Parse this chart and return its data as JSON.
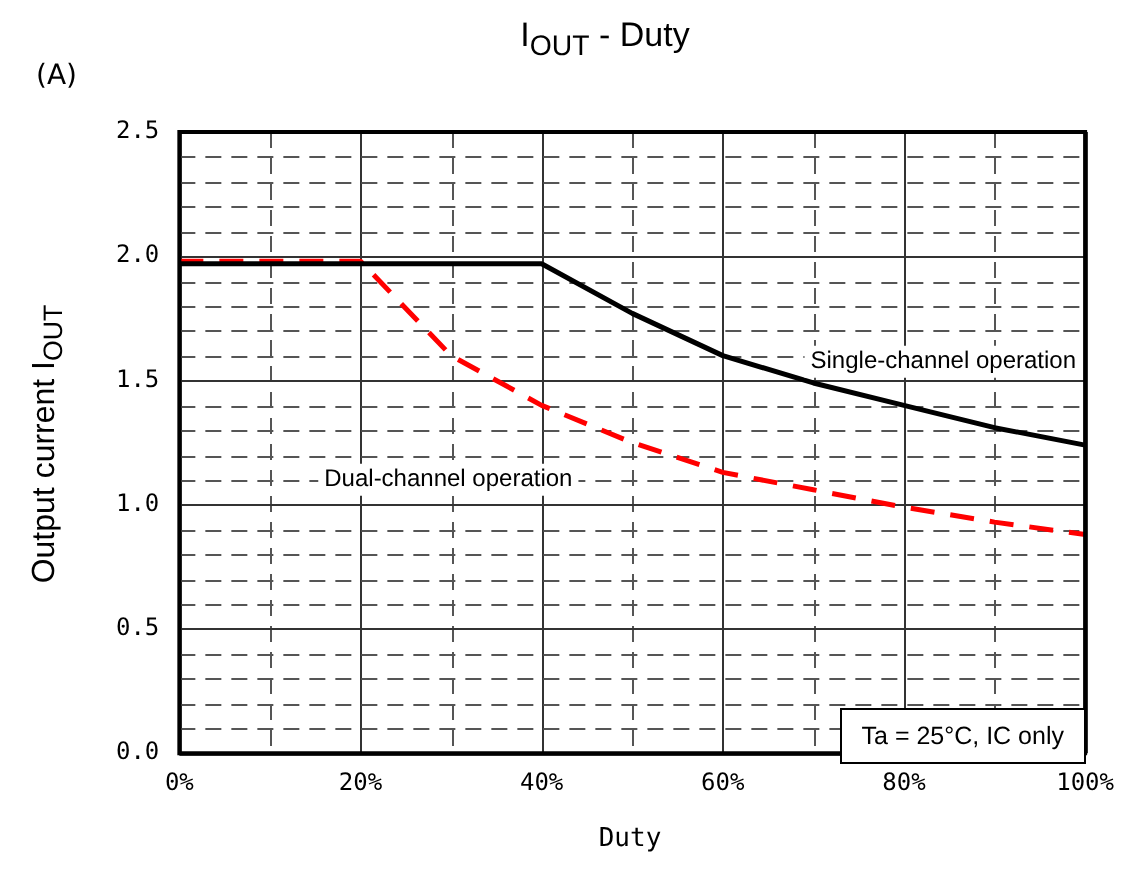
{
  "chart_data": {
    "type": "line",
    "title": "I$_{OUT}$ - Duty",
    "xlabel": "Duty",
    "ylabel": "Output current  I$_{OUT}$",
    "annotations": [
      "(A)",
      "Ta = 25°C, IC only"
    ],
    "x": [
      0,
      20,
      30,
      40,
      50,
      60,
      70,
      80,
      90,
      100
    ],
    "series": [
      {
        "name": "Single-channel operation",
        "color": "#000000",
        "line_style": "solid",
        "values": [
          1.97,
          1.97,
          1.97,
          1.97,
          1.77,
          1.6,
          1.49,
          1.4,
          1.31,
          1.24
        ]
      },
      {
        "name": "Dual-channel operation",
        "color": "#ff0000",
        "line_style": "dashed",
        "values": [
          1.98,
          1.98,
          1.6,
          1.4,
          1.25,
          1.13,
          1.06,
          0.99,
          0.93,
          0.88
        ]
      }
    ],
    "xlim": [
      0,
      100
    ],
    "xticks": [
      {
        "value": 0,
        "label": "0%"
      },
      {
        "value": 10,
        "label": null
      },
      {
        "value": 20,
        "label": "20%"
      },
      {
        "value": 30,
        "label": null
      },
      {
        "value": 40,
        "label": "40%"
      },
      {
        "value": 50,
        "label": null
      },
      {
        "value": 60,
        "label": "60%"
      },
      {
        "value": 70,
        "label": null
      },
      {
        "value": 80,
        "label": "80%"
      },
      {
        "value": 90,
        "label": null
      },
      {
        "value": 100,
        "label": "100%"
      }
    ],
    "ylim": [
      0,
      2.5
    ],
    "yticks": [
      {
        "value": 0,
        "label": "0.0"
      },
      {
        "value": 0.1,
        "label": null
      },
      {
        "value": 0.2,
        "label": null
      },
      {
        "value": 0.3,
        "label": null
      },
      {
        "value": 0.4,
        "label": null
      },
      0.5,
      {
        "value": 0.6,
        "label": null
      },
      {
        "value": 0.7,
        "label": null
      },
      {
        "value": 0.8,
        "label": null
      },
      {
        "value": 0.9,
        "label": null
      },
      {
        "value": 1,
        "label": "1.0"
      },
      {
        "value": 1.1,
        "label": null
      },
      {
        "value": 1.2,
        "label": null
      },
      {
        "value": 1.3,
        "label": null
      },
      {
        "value": 1.4,
        "label": null
      },
      1.5,
      {
        "value": 1.6,
        "label": null
      },
      {
        "value": 1.7,
        "label": null
      },
      {
        "value": 1.8,
        "label": null
      },
      {
        "value": 1.9,
        "label": null
      },
      {
        "value": 2,
        "label": "2.0"
      },
      {
        "value": 2.1,
        "label": null
      },
      {
        "value": 2.2,
        "label": null
      },
      {
        "value": 2.3,
        "label": null
      },
      {
        "value": 2.4,
        "label": null
      },
      2.5
    ],
    "grid": true,
    "legend": false,
    "marker": "none"
  }
}
